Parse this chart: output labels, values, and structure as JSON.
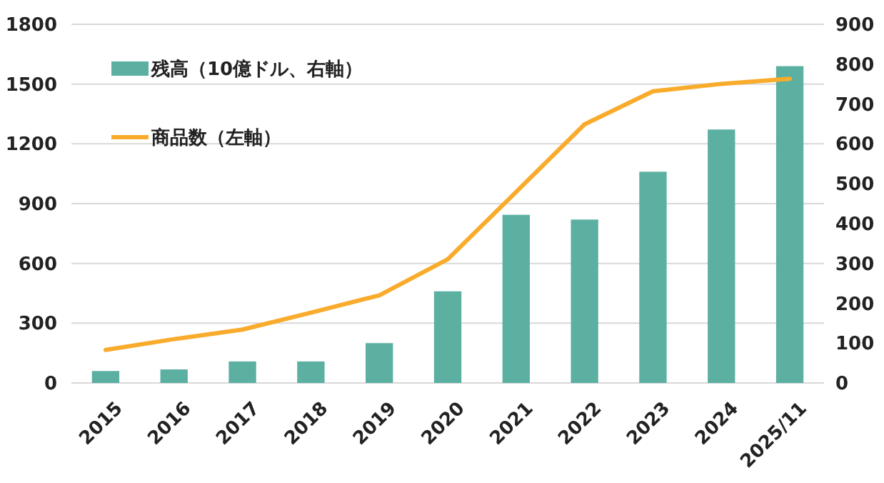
{
  "chart_data": {
    "type": "bar",
    "categories": [
      "2015",
      "2016",
      "2017",
      "2018",
      "2019",
      "2020",
      "2021",
      "2022",
      "2023",
      "2024",
      "2025/11"
    ],
    "series": [
      {
        "name": "残高（10億ドル、右軸）",
        "axis": "y2",
        "color": "#5bb0a2",
        "values": [
          30,
          34,
          54,
          54,
          100,
          230,
          422,
          410,
          530,
          636,
          795
        ]
      },
      {
        "name": "商品数（左軸）",
        "type": "line",
        "axis": "y",
        "color": "#f9ab2c",
        "values": [
          166,
          220,
          268,
          353,
          440,
          621,
          959,
          1298,
          1464,
          1501,
          1527
        ]
      }
    ],
    "ylim": [
      0,
      1800
    ],
    "yticks": [
      0,
      300,
      600,
      900,
      1200,
      1500,
      1800
    ],
    "y2lim": [
      0,
      900
    ],
    "y2ticks": [
      0,
      100,
      200,
      300,
      400,
      500,
      600,
      700,
      800,
      900
    ],
    "grid": "y",
    "legend": "top left",
    "marker": "none",
    "line_style": "solid"
  }
}
